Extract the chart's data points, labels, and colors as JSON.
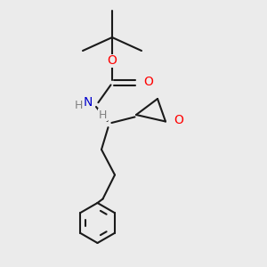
{
  "bg_color": "#ebebeb",
  "bond_color": "#1a1a1a",
  "O_color": "#ff0000",
  "N_color": "#0000cc",
  "H_color": "#808080",
  "line_width": 1.5,
  "figsize": [
    3.0,
    3.0
  ],
  "dpi": 100,
  "xlim": [
    0,
    10
  ],
  "ylim": [
    0,
    10
  ]
}
